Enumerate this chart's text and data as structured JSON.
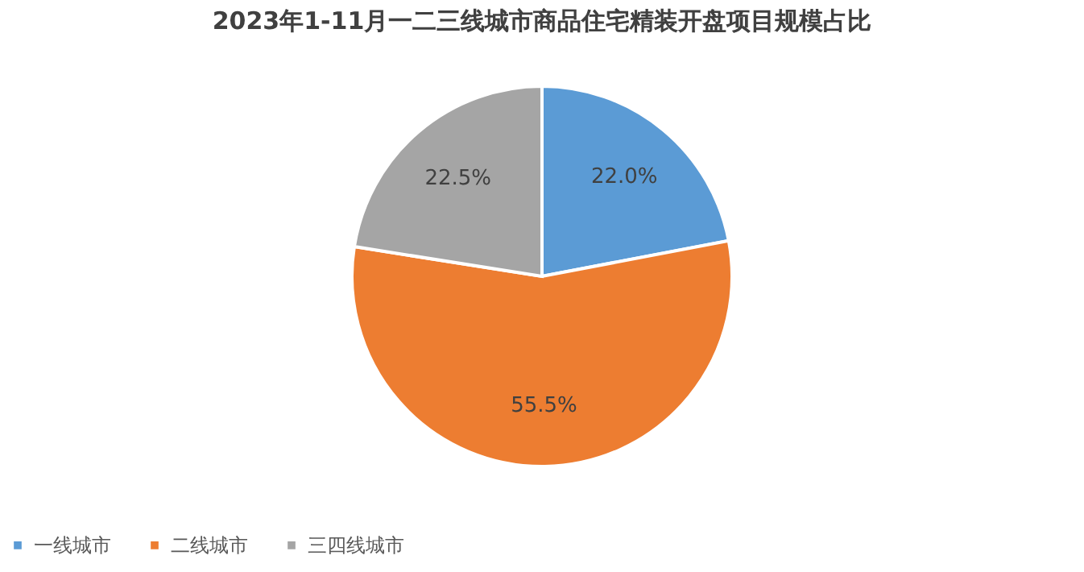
{
  "chart_data": {
    "type": "pie",
    "title": "2023年1-11月一二三线城市商品住宅精装开盘项目规模占比",
    "categories": [
      "一线城市",
      "二线城市",
      "三四线城市"
    ],
    "values": [
      22.0,
      55.5,
      22.5
    ],
    "colors": [
      "#5b9bd5",
      "#ed7d31",
      "#a5a5a5"
    ],
    "value_labels": [
      "22.0%",
      "55.5%",
      "22.5%"
    ],
    "legend": "bottom"
  }
}
